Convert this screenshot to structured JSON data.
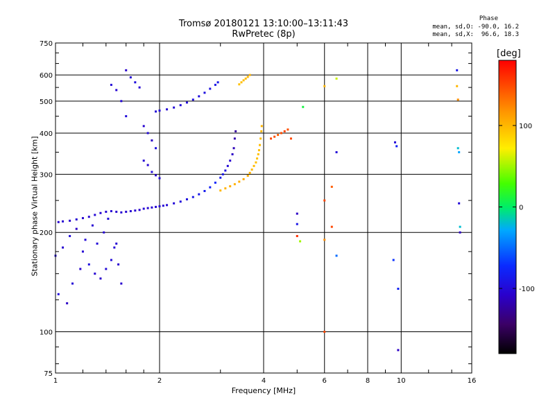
{
  "header": {
    "title_line1": "Tromsø 20180121 13:10:00–13:11:43",
    "title_line2": "RwPretec (8p)"
  },
  "stats": {
    "heading": "Phase",
    "o_mode": "mean, sd,O: -90.0, 16.2",
    "x_mode": "mean, sd,X:  96.6, 18.3"
  },
  "colors": {
    "grid": "#000000",
    "background": "#ffffff"
  },
  "chart_data": {
    "type": "scatter",
    "xlabel": "Frequency [MHz]",
    "ylabel": "Stationary phase Virtual Height [km]",
    "x_scale": "log",
    "y_scale": "log",
    "xlim": [
      1,
      16
    ],
    "ylim": [
      75,
      750
    ],
    "x_ticks": [
      {
        "value": 1,
        "label": "1"
      },
      {
        "value": 2,
        "label": "2"
      },
      {
        "value": 4,
        "label": "4"
      },
      {
        "value": 6,
        "label": "6"
      },
      {
        "value": 8,
        "label": "8"
      },
      {
        "value": 10,
        "label": "10"
      },
      {
        "value": 16,
        "label": "16"
      }
    ],
    "y_ticks": [
      {
        "value": 75,
        "label": "75"
      },
      {
        "value": 100,
        "label": "100"
      },
      {
        "value": 200,
        "label": "200"
      },
      {
        "value": 300,
        "label": "300"
      },
      {
        "value": 400,
        "label": "400"
      },
      {
        "value": 500,
        "label": "500"
      },
      {
        "value": 600,
        "label": "600"
      },
      {
        "value": 750,
        "label": "750"
      }
    ],
    "colorbar": {
      "label": "[deg]",
      "range": [
        -180,
        180
      ],
      "ticks": [
        {
          "value": 100,
          "label": "100"
        },
        {
          "value": 0,
          "label": "0"
        },
        {
          "value": -100,
          "label": "-100"
        }
      ]
    },
    "series": [
      {
        "values": [
          [
            1.02,
            215
          ],
          [
            1.05,
            216
          ],
          [
            1.1,
            217
          ],
          [
            1.15,
            219
          ],
          [
            1.2,
            221
          ],
          [
            1.25,
            223
          ],
          [
            1.3,
            226
          ],
          [
            1.35,
            229
          ],
          [
            1.4,
            231
          ],
          [
            1.45,
            232
          ],
          [
            1.5,
            231
          ],
          [
            1.55,
            230
          ],
          [
            1.6,
            231
          ],
          [
            1.65,
            232
          ],
          [
            1.7,
            233
          ],
          [
            1.75,
            234
          ],
          [
            1.8,
            236
          ],
          [
            1.85,
            237
          ],
          [
            1.9,
            238
          ],
          [
            1.95,
            239
          ],
          [
            2.0,
            240
          ],
          [
            2.05,
            241
          ],
          [
            2.1,
            242
          ],
          [
            2.2,
            245
          ],
          [
            2.3,
            248
          ],
          [
            2.4,
            252
          ],
          [
            2.5,
            256
          ],
          [
            2.6,
            261
          ],
          [
            2.7,
            267
          ],
          [
            2.8,
            274
          ],
          [
            2.9,
            283
          ],
          [
            3.0,
            293
          ],
          [
            3.05,
            300
          ],
          [
            3.1,
            308
          ],
          [
            3.15,
            318
          ],
          [
            3.2,
            330
          ],
          [
            3.25,
            345
          ],
          [
            3.28,
            360
          ],
          [
            3.3,
            385
          ],
          [
            3.32,
            405
          ]
        ],
        "phase": [
          -105,
          -104,
          -106,
          -103,
          -105,
          -104,
          -102,
          -105,
          -104,
          -103,
          -106,
          -104,
          -105,
          -103,
          -104,
          -106,
          -102,
          -104,
          -105,
          -103,
          -104,
          -102,
          -101,
          -100,
          -98,
          -95,
          -90,
          -88,
          -85,
          -80,
          -75,
          -85,
          -90,
          -95,
          -100,
          -105,
          -110,
          -115,
          -120,
          -125
        ]
      },
      {
        "values": [
          [
            3.0,
            268
          ],
          [
            3.1,
            272
          ],
          [
            3.2,
            276
          ],
          [
            3.3,
            280
          ],
          [
            3.4,
            285
          ],
          [
            3.5,
            290
          ],
          [
            3.6,
            297
          ],
          [
            3.65,
            303
          ],
          [
            3.7,
            310
          ],
          [
            3.75,
            318
          ],
          [
            3.8,
            326
          ],
          [
            3.83,
            335
          ],
          [
            3.86,
            345
          ],
          [
            3.88,
            355
          ],
          [
            3.9,
            368
          ],
          [
            3.92,
            385
          ],
          [
            3.94,
            405
          ],
          [
            3.95,
            420
          ]
        ],
        "phase": [
          100,
          102,
          104,
          103,
          105,
          106,
          104,
          102,
          100,
          98,
          96,
          94,
          95,
          96,
          97,
          98,
          100,
          102
        ]
      },
      {
        "values": [
          [
            1.95,
            465
          ],
          [
            2.0,
            468
          ],
          [
            2.1,
            472
          ],
          [
            2.2,
            478
          ],
          [
            2.3,
            486
          ],
          [
            2.4,
            495
          ],
          [
            2.5,
            505
          ],
          [
            2.6,
            517
          ],
          [
            2.7,
            530
          ],
          [
            2.8,
            545
          ],
          [
            2.9,
            560
          ],
          [
            2.95,
            570
          ]
        ],
        "phase": [
          -100,
          -101,
          -102,
          -100,
          -99,
          -98,
          -97,
          -96,
          -95,
          -94,
          -90,
          -88
        ]
      },
      {
        "values": [
          [
            3.4,
            562
          ],
          [
            3.45,
            570
          ],
          [
            3.5,
            578
          ],
          [
            3.55,
            585
          ],
          [
            3.6,
            592
          ],
          [
            3.65,
            600
          ]
        ],
        "phase": [
          95,
          96,
          97,
          98,
          100,
          102
        ]
      },
      {
        "values": [
          [
            1.0,
            170
          ],
          [
            1.05,
            180
          ],
          [
            1.1,
            195
          ],
          [
            1.15,
            205
          ],
          [
            1.2,
            175
          ],
          [
            1.25,
            160
          ],
          [
            1.3,
            150
          ],
          [
            1.35,
            145
          ],
          [
            1.4,
            155
          ],
          [
            1.45,
            165
          ],
          [
            1.5,
            185
          ],
          [
            1.55,
            140
          ],
          [
            1.02,
            130
          ],
          [
            1.08,
            122
          ],
          [
            1.12,
            140
          ],
          [
            1.18,
            155
          ],
          [
            1.22,
            190
          ],
          [
            1.28,
            210
          ],
          [
            1.32,
            185
          ],
          [
            1.38,
            200
          ],
          [
            1.42,
            220
          ],
          [
            1.48,
            180
          ],
          [
            1.52,
            160
          ],
          [
            1.45,
            560
          ],
          [
            1.5,
            540
          ],
          [
            1.55,
            500
          ],
          [
            1.6,
            450
          ],
          [
            1.6,
            620
          ],
          [
            1.65,
            590
          ],
          [
            1.7,
            570
          ],
          [
            1.75,
            550
          ],
          [
            1.8,
            420
          ],
          [
            1.85,
            400
          ],
          [
            1.9,
            380
          ],
          [
            1.95,
            360
          ],
          [
            1.8,
            330
          ],
          [
            1.85,
            320
          ],
          [
            1.9,
            305
          ],
          [
            1.95,
            298
          ],
          [
            2.0,
            292
          ]
        ],
        "phase": [
          -100,
          -105,
          -98,
          -110,
          -102,
          -95,
          -104,
          -108,
          -100,
          -99,
          -103,
          -106,
          -97,
          -110,
          -101,
          -105,
          -100,
          -104,
          -99,
          -103,
          -98,
          -102,
          -106,
          -100,
          -104,
          -101,
          -98,
          -107,
          -100,
          -96,
          -103,
          -105,
          -100,
          -110,
          -95,
          -102,
          -104,
          -99,
          -106,
          -101
        ]
      },
      {
        "values": [
          [
            4.2,
            385
          ],
          [
            4.3,
            390
          ],
          [
            4.4,
            395
          ],
          [
            4.5,
            400
          ],
          [
            4.6,
            405
          ],
          [
            4.7,
            410
          ]
        ],
        "phase": [
          150,
          145,
          140,
          148,
          152,
          146
        ]
      },
      {
        "values": [
          [
            6.0,
            555
          ],
          [
            6.0,
            250
          ],
          [
            6.0,
            190
          ],
          [
            6.0,
            100
          ],
          [
            6.3,
            275
          ],
          [
            6.3,
            208
          ],
          [
            6.5,
            585
          ],
          [
            6.5,
            350
          ],
          [
            6.5,
            170
          ],
          [
            9.5,
            165
          ],
          [
            9.6,
            375
          ],
          [
            9.7,
            365
          ],
          [
            9.8,
            135
          ],
          [
            9.8,
            88
          ],
          [
            14.5,
            620
          ],
          [
            14.5,
            555
          ],
          [
            14.6,
            505
          ],
          [
            14.6,
            360
          ],
          [
            14.7,
            350
          ],
          [
            14.7,
            245
          ],
          [
            14.8,
            208
          ],
          [
            14.8,
            200
          ],
          [
            5.0,
            228
          ],
          [
            5.0,
            212
          ],
          [
            5.0,
            195
          ],
          [
            5.1,
            188
          ],
          [
            5.2,
            480
          ],
          [
            4.8,
            385
          ]
        ],
        "phase": [
          100,
          150,
          120,
          150,
          140,
          150,
          60,
          -100,
          -50,
          -70,
          -100,
          -80,
          -80,
          -110,
          -90,
          100,
          120,
          -20,
          -30,
          -100,
          -20,
          -110,
          -110,
          -90,
          160,
          50,
          10,
          150
        ]
      }
    ]
  }
}
